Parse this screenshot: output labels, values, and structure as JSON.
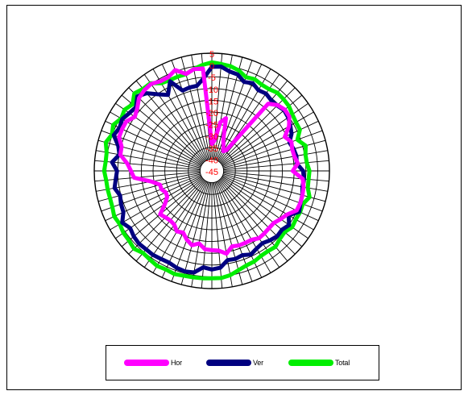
{
  "chart_data": {
    "type": "radar",
    "radial_tick_labels": [
      "5",
      "0",
      "-5",
      "-10",
      "-15",
      "-20",
      "-25",
      "-30",
      "-35",
      "-40",
      "-45"
    ],
    "rlim": [
      -45,
      5
    ],
    "angular_divisions": 72,
    "angle_step_deg": 5,
    "grid": true,
    "legend_position": "bottom",
    "series": [
      {
        "name": "Hor",
        "color": "#ff00ff",
        "values": [
          -33.6,
          -32.0,
          -24.0,
          -21.8,
          -30.7,
          -33.3,
          -35.3,
          -34.3,
          -7.7,
          -5.5,
          -4.5,
          -4.8,
          -7.1,
          -10.8,
          -9.0,
          -9.6,
          -9.4,
          -8.3,
          -10.6,
          -6.2,
          -5.4,
          -5.1,
          -5.0,
          -5.2,
          -8.0,
          -9.3,
          -10.6,
          -10.6,
          -10.3,
          -10.1,
          -11.2,
          -11.3,
          -11.3,
          -11.8,
          -9.3,
          -11.0,
          -11.3,
          -11.6,
          -13.7,
          -12.3,
          -13.9,
          -16.1,
          -15.3,
          -17.1,
          -17.5,
          -17.1,
          -16.3,
          -20.7,
          -23.1,
          -23.4,
          -22.2,
          -22.2,
          -18.9,
          -11.8,
          -10.6,
          -8.9,
          -5.5,
          -5.3,
          -3.0,
          -2.9,
          -3.0,
          -5.0,
          -3.6,
          -1.2,
          -0.3,
          0.1,
          -1.1,
          -1.1,
          0.6,
          -2.4,
          -1.1,
          -1.3
        ]
      },
      {
        "name": "Ver",
        "color": "#000080",
        "values": [
          -0.8,
          -0.5,
          -2.1,
          -2.6,
          -4.8,
          -3.9,
          -5.4,
          -4.9,
          -5.8,
          -5.7,
          -4.9,
          -5.4,
          -6.5,
          -7.6,
          -9.9,
          -9.0,
          -8.5,
          -8.8,
          -6.2,
          -5.7,
          -5.9,
          -5.2,
          -4.9,
          -4.0,
          -7.3,
          -4.9,
          -6.1,
          -5.7,
          -6.5,
          -7.5,
          -6.9,
          -5.8,
          -6.9,
          -6.3,
          -6.5,
          -3.7,
          -3.1,
          -3.9,
          -1.2,
          -0.8,
          -1.2,
          -2.0,
          -1.8,
          -1.4,
          -1.5,
          -1.2,
          -1.7,
          -2.6,
          -1.0,
          -3.5,
          -3.9,
          -4.6,
          -3.0,
          -4.0,
          -4.7,
          -2.4,
          -5.1,
          -3.8,
          -0.6,
          -1.7,
          -1.0,
          -2.2,
          -2.9,
          -0.2,
          -1.9,
          -5.3,
          -7.7,
          -3.0,
          -8.7,
          -8.3,
          -8.3,
          -5.5
        ]
      },
      {
        "name": "Total",
        "color": "#00ee00",
        "values": [
          1.1,
          0.6,
          0.2,
          -0.8,
          -2.6,
          -2.0,
          -2.7,
          -2.6,
          -1.7,
          -1.9,
          -2.2,
          -3.2,
          -3.7,
          -3.7,
          -6.3,
          -3.7,
          -4.6,
          -4.5,
          -3.5,
          -3.7,
          -3.6,
          -2.0,
          -3.8,
          -3.6,
          -3.8,
          -3.3,
          -4.6,
          -4.1,
          -2.9,
          -3.4,
          -3.3,
          -2.5,
          -2.2,
          -1.3,
          0.0,
          0.7,
          0.6,
          0.8,
          0.9,
          1.1,
          1.6,
          1.2,
          1.6,
          1.0,
          0.5,
          1.8,
          1.0,
          0.9,
          0.2,
          0.8,
          0.0,
          -0.2,
          0.0,
          0.1,
          0.8,
          0.3,
          0.4,
          1.7,
          0.2,
          1.3,
          -0.5,
          0.3,
          -1.0,
          1.6,
          0.5,
          0.5,
          -2.0,
          -2.5,
          -2.4,
          -2.5,
          -1.0,
          0.2
        ]
      }
    ]
  }
}
